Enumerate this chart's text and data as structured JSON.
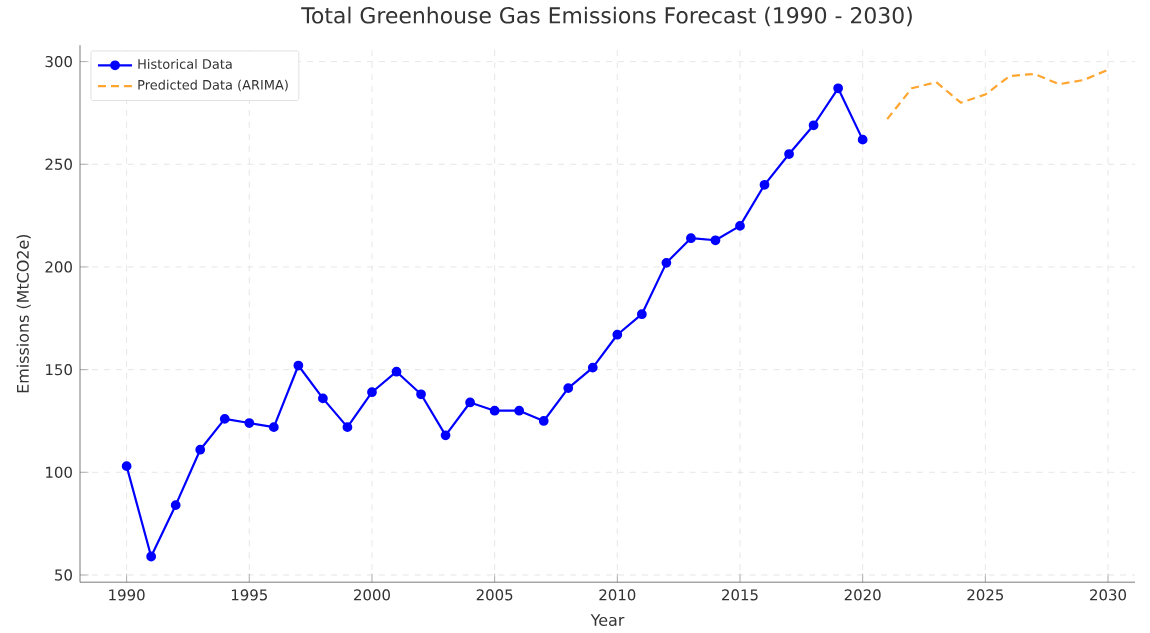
{
  "chart_data": {
    "type": "line",
    "title": "Total Greenhouse Gas Emissions Forecast (1990 - 2030)",
    "xlabel": "Year",
    "ylabel": "Emissions (MtCO2e)",
    "series": [
      {
        "name": "Historical Data",
        "color": "#0000ff",
        "marker": "circle",
        "line_style": "solid",
        "x": [
          1990,
          1991,
          1992,
          1993,
          1994,
          1995,
          1996,
          1997,
          1998,
          1999,
          2000,
          2001,
          2002,
          2003,
          2004,
          2005,
          2006,
          2007,
          2008,
          2009,
          2010,
          2011,
          2012,
          2013,
          2014,
          2015,
          2016,
          2017,
          2018,
          2019,
          2020
        ],
        "values": [
          103,
          59,
          84,
          111,
          126,
          124,
          122,
          152,
          136,
          122,
          139,
          149,
          138,
          118,
          134,
          130,
          130,
          125,
          141,
          151,
          167,
          177,
          202,
          214,
          213,
          220,
          240,
          255,
          269,
          287,
          262
        ]
      },
      {
        "name": "Predicted Data (ARIMA)",
        "color": "#ffa530",
        "marker": "none",
        "line_style": "dashed",
        "x": [
          2021,
          2022,
          2023,
          2024,
          2025,
          2026,
          2027,
          2028,
          2029,
          2030
        ],
        "values": [
          272,
          287,
          290,
          280,
          284,
          293,
          294,
          289,
          291,
          296
        ]
      }
    ],
    "xlim": [
      1988.1,
      2031.1
    ],
    "ylim": [
      46.5,
      308
    ],
    "xticks": [
      1990,
      1995,
      2000,
      2005,
      2010,
      2015,
      2020,
      2025,
      2030
    ],
    "yticks": [
      50,
      100,
      150,
      200,
      250,
      300
    ],
    "grid": true,
    "legend": "top left"
  }
}
